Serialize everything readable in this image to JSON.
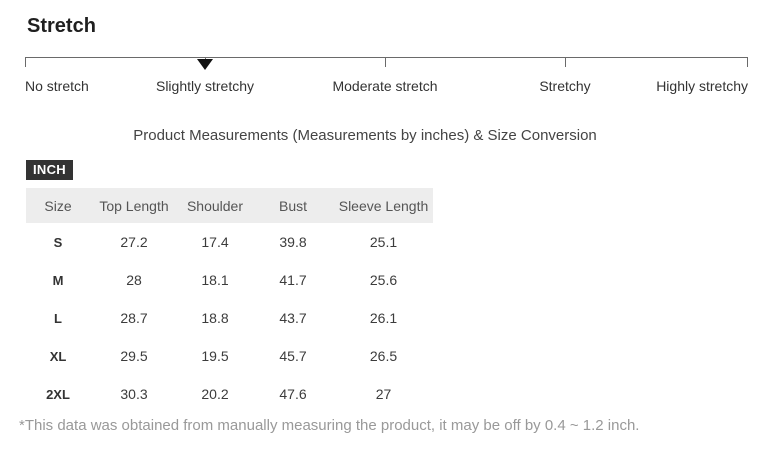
{
  "stretch": {
    "heading": "Stretch",
    "scale": {
      "labels": [
        "No stretch",
        "Slightly stretchy",
        "Moderate stretch",
        "Stretchy",
        "Highly stretchy"
      ],
      "selected_label": "Slightly stretchy",
      "selected_index": 1,
      "marker_icon": "triangle-down"
    }
  },
  "measurements": {
    "title": "Product Measurements (Measurements by inches) & Size Conversion",
    "unit_badge": "INCH",
    "table": {
      "columns": [
        "Size",
        "Top Length",
        "Shoulder",
        "Bust",
        "Sleeve Length"
      ],
      "rows": [
        [
          "S",
          "27.2",
          "17.4",
          "39.8",
          "25.1"
        ],
        [
          "M",
          "28",
          "18.1",
          "41.7",
          "25.6"
        ],
        [
          "L",
          "28.7",
          "18.8",
          "43.7",
          "26.1"
        ],
        [
          "XL",
          "29.5",
          "19.5",
          "45.7",
          "26.5"
        ],
        [
          "2XL",
          "30.3",
          "20.2",
          "47.6",
          "27"
        ]
      ]
    },
    "footnote": "*This data was obtained from manually measuring the product, it may be off by 0.4 ~ 1.2 inch."
  },
  "colors": {
    "badge_bg": "#333333",
    "badge_text": "#ffffff",
    "table_header_bg": "#ededed",
    "marker": "#111111",
    "scale_line": "#6a6a6a",
    "footnote_text": "#999999"
  }
}
